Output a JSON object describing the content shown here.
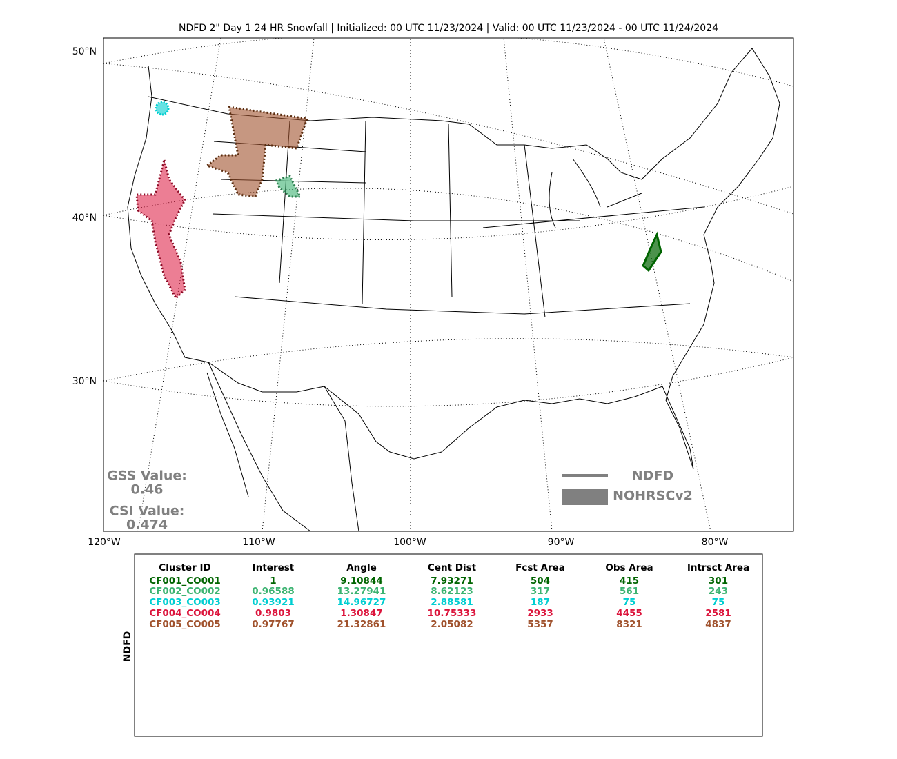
{
  "title": "NDFD 2\" Day 1 24 HR Snowfall | Initialized: 00 UTC 11/23/2024 | Valid: 00 UTC 11/23/2024 - 00 UTC 11/24/2024",
  "map": {
    "lat_labels": [
      "50°N",
      "40°N",
      "30°N"
    ],
    "lon_labels": [
      "120°W",
      "110°W",
      "100°W",
      "90°W",
      "80°W"
    ],
    "scores": {
      "gss_label": "GSS Value:",
      "gss_value": "0.46",
      "csi_label": "CSI Value:",
      "csi_value": "0.474"
    },
    "legend": {
      "forecast": "NDFD",
      "observed": "NOHRSCv2",
      "color": "#808080"
    }
  },
  "table": {
    "side_label": "NDFD",
    "headers": [
      "Cluster ID",
      "Interest",
      "Angle",
      "Cent Dist",
      "Fcst Area",
      "Obs Area",
      "Intrsct Area"
    ],
    "rows": [
      {
        "color": "#006400",
        "cells": [
          "CF001_CO001",
          "1",
          "9.10844",
          "7.93271",
          "504",
          "415",
          "301"
        ]
      },
      {
        "color": "#3cb371",
        "cells": [
          "CF002_CO002",
          "0.96588",
          "13.27941",
          "8.62123",
          "317",
          "561",
          "243"
        ]
      },
      {
        "color": "#00ced1",
        "cells": [
          "CF003_CO003",
          "0.93921",
          "14.96727",
          "2.88581",
          "187",
          "75",
          "75"
        ]
      },
      {
        "color": "#dc143c",
        "cells": [
          "CF004_CO004",
          "0.9803",
          "1.30847",
          "10.75333",
          "2933",
          "4455",
          "2581"
        ]
      },
      {
        "color": "#a0522d",
        "cells": [
          "CF005_CO005",
          "0.97767",
          "21.32861",
          "2.05082",
          "5357",
          "8321",
          "4837"
        ]
      }
    ]
  }
}
